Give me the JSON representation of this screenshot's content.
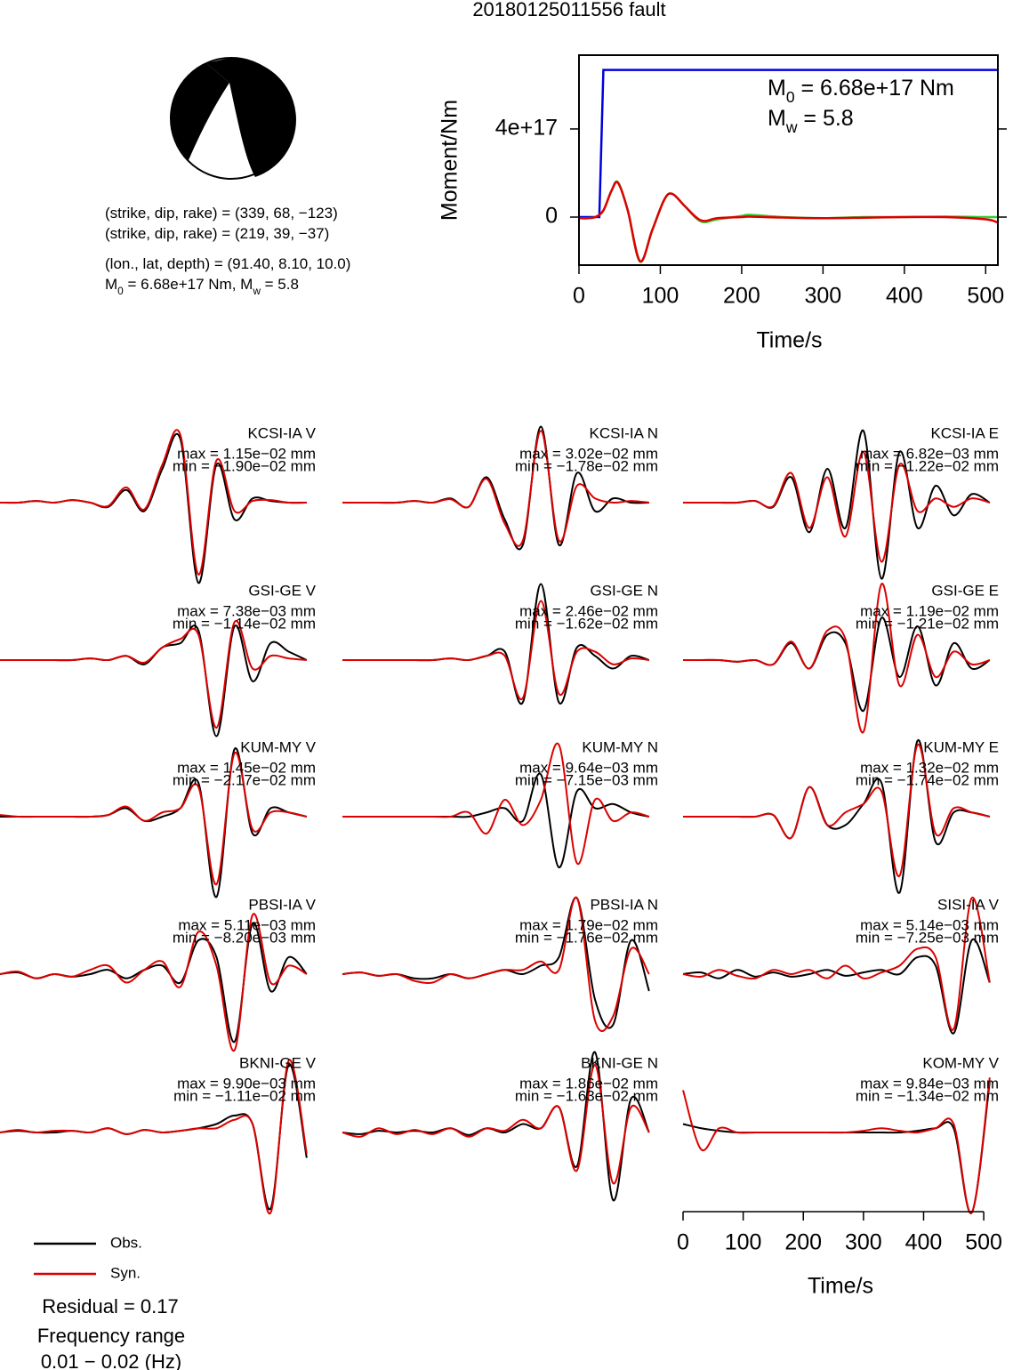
{
  "title": "20180125011556 fault",
  "mechanism": [
    [
      {
        "text": "(strike, dip, rake) = (339, 68, −123)"
      }
    ],
    [
      {
        "text": "(strike, dip, rake) = (219, 39, −37)"
      }
    ],
    [
      {
        "text": "(lon., lat, depth) = (91.40, 8.10, 10.0)"
      }
    ],
    [
      {
        "text": "M"
      },
      {
        "text": "0",
        "subscript": true
      },
      {
        "text": " = 6.68e+17 Nm, M"
      },
      {
        "text": "w",
        "subscript": true
      },
      {
        "text": " = 5.8"
      }
    ]
  ],
  "chart_data": [
    {
      "type": "line",
      "xlabel": "Time/s",
      "ylabel": "Moment/Nm",
      "xlim": [
        0,
        515
      ],
      "ylim": [
        -2.18e+17,
        7.35e+17
      ],
      "xticks": [
        0,
        100,
        200,
        300,
        400,
        500
      ],
      "yticks": [
        0,
        {
          "value": 4e+17,
          "label": "4e+17"
        }
      ],
      "annotations": [
        [
          {
            "text": "M"
          },
          {
            "text": "0",
            "subscript": true
          },
          {
            "text": " = 6.68e+17 Nm"
          }
        ],
        [
          {
            "text": "M"
          },
          {
            "text": "w",
            "subscript": true
          },
          {
            "text": " = 5.8"
          }
        ]
      ],
      "series": [
        {
          "color": "#0000dd",
          "x": [
            0,
            25,
            30,
            515
          ],
          "values": [
            0,
            0,
            6.68e+17,
            6.68e+17
          ]
        },
        {
          "color": "#33cc33",
          "x": [
            0,
            10,
            20,
            30,
            40,
            48,
            60,
            75,
            90,
            105,
            115,
            130,
            150,
            170,
            200,
            210,
            250,
            300,
            350,
            400,
            450,
            500,
            515
          ],
          "values": [
            -5000000000000000.0,
            -5000000000000000.0,
            0,
            3e+16,
            1.2e+17,
            1.58e+17,
            3e+16,
            -2.02e+17,
            -6e+16,
            8e+16,
            1.05e+17,
            5e+16,
            -2e+16,
            -1e+16,
            5000000000000000.0,
            1e+16,
            0,
            -5000000000000000.0,
            0,
            0,
            2000000000000000.0,
            0,
            0
          ]
        },
        {
          "color": "#dd0000",
          "x": [
            0,
            10,
            20,
            30,
            40,
            48,
            60,
            75,
            90,
            105,
            115,
            130,
            150,
            170,
            200,
            210,
            250,
            300,
            350,
            400,
            450,
            500,
            515
          ],
          "values": [
            -5000000000000000.0,
            -5000000000000000.0,
            0,
            3e+16,
            1.2e+17,
            1.55e+17,
            3e+16,
            -2e+17,
            -6e+16,
            8e+16,
            1.05e+17,
            5e+16,
            -1.5e+16,
            -5000000000000000.0,
            0,
            2000000000000000.0,
            -2000000000000000.0,
            -5000000000000000.0,
            -3000000000000000.0,
            0,
            0,
            -1e+16,
            -2.5e+16
          ]
        }
      ]
    },
    {
      "type": "waveform",
      "xlabel": "Time/s",
      "xlim": [
        0,
        525
      ],
      "xticks": [
        0,
        100,
        200,
        300,
        400,
        500
      ],
      "x": [
        0,
        30,
        60,
        90,
        120,
        150,
        180,
        210,
        240,
        270,
        300,
        330,
        360,
        390,
        420,
        450,
        480,
        510
      ],
      "legend": [
        {
          "name": "Obs.",
          "color": "#000000"
        },
        {
          "name": "Syn.",
          "color": "#dd0000"
        }
      ],
      "panels": [
        {
          "station": "KCSI-IA V",
          "max": "max = 1.15e−02 mm",
          "min": "min = −1.90e−02 mm",
          "obs": [
            0,
            0,
            0.02,
            0,
            0.03,
            0,
            -0.05,
            0.15,
            -0.1,
            0.4,
            0.75,
            -0.95,
            0.45,
            -0.2,
            0.05,
            0.02,
            0,
            0
          ],
          "syn": [
            0,
            0,
            0.02,
            0,
            0.03,
            0,
            -0.04,
            0.18,
            -0.08,
            0.45,
            0.8,
            -0.85,
            0.5,
            -0.1,
            0.02,
            0.03,
            0,
            0
          ]
        },
        {
          "station": "KCSI-IA N",
          "max": "max = 3.02e−02 mm",
          "min": "min = −1.78e−02 mm",
          "obs": [
            0,
            0,
            0,
            0,
            0.02,
            0,
            0.05,
            -0.05,
            0.3,
            -0.2,
            -0.5,
            0.9,
            -0.5,
            0.35,
            -0.1,
            0.05,
            0,
            0
          ],
          "syn": [
            0,
            0,
            0,
            0,
            0.02,
            0,
            0.04,
            -0.05,
            0.28,
            -0.25,
            -0.45,
            0.85,
            -0.45,
            0.2,
            0.05,
            0,
            0.02,
            0
          ]
        },
        {
          "station": "KCSI-IA E",
          "max": "max = 6.82e−03 mm",
          "min": "min = −1.22e−02 mm",
          "obs": [
            0,
            0,
            0,
            0,
            0.02,
            -0.05,
            0.3,
            -0.35,
            0.4,
            -0.3,
            0.85,
            -0.9,
            0.6,
            -0.3,
            0.2,
            -0.15,
            0.1,
            0
          ],
          "syn": [
            0,
            0,
            0,
            0,
            0.02,
            -0.04,
            0.35,
            -0.3,
            0.3,
            -0.4,
            0.6,
            -0.7,
            0.45,
            -0.1,
            0.05,
            -0.05,
            0.05,
            0
          ]
        },
        {
          "station": "GSI-GE V",
          "max": "max = 7.38e−03 mm",
          "min": "min = −1.14e−02 mm",
          "obs": [
            0,
            0,
            0,
            0,
            0,
            0.02,
            0,
            0.05,
            -0.05,
            0.15,
            0.2,
            0.35,
            -0.9,
            0.4,
            -0.25,
            0.2,
            0.1,
            0
          ],
          "syn": [
            0,
            0,
            0,
            0,
            0,
            0.02,
            0,
            0.05,
            -0.03,
            0.15,
            0.25,
            0.3,
            -0.8,
            0.45,
            -0.1,
            0.05,
            0.02,
            0
          ]
        },
        {
          "station": "GSI-GE N",
          "max": "max = 2.46e−02 mm",
          "min": "min = −1.62e−02 mm",
          "obs": [
            0,
            0,
            0,
            0,
            0,
            0,
            0.02,
            0,
            0.05,
            0.1,
            -0.5,
            0.9,
            -0.5,
            0.15,
            0.05,
            -0.1,
            0.05,
            0
          ],
          "syn": [
            0,
            0,
            0,
            0,
            0,
            0,
            0.02,
            0,
            0.05,
            0.05,
            -0.45,
            0.7,
            -0.4,
            0.1,
            0.1,
            -0.05,
            0.02,
            0
          ]
        },
        {
          "station": "GSI-GE E",
          "max": "max = 1.19e−02 mm",
          "min": "min = −1.21e−02 mm",
          "obs": [
            0,
            0,
            0,
            -0.02,
            0,
            -0.05,
            0.2,
            -0.1,
            0.3,
            0.2,
            -0.6,
            0.5,
            -0.2,
            0.4,
            -0.3,
            0.2,
            -0.1,
            0
          ],
          "syn": [
            0,
            0,
            0,
            -0.02,
            0,
            -0.05,
            0.22,
            -0.1,
            0.35,
            0.25,
            -0.85,
            0.9,
            -0.3,
            0.3,
            -0.2,
            0.1,
            -0.05,
            0
          ]
        },
        {
          "station": "KUM-MY V",
          "max": "max = 1.45e−02 mm",
          "min": "min = −2.17e−02 mm",
          "obs": [
            0,
            0,
            0,
            0,
            0,
            0,
            0.02,
            0.1,
            -0.05,
            0,
            0.1,
            0.4,
            -0.95,
            0.8,
            -0.2,
            0.1,
            0.05,
            0
          ],
          "syn": [
            0.02,
            0,
            0,
            0,
            0,
            0,
            0.02,
            0.12,
            -0.05,
            0.05,
            0.1,
            0.35,
            -0.8,
            0.75,
            -0.15,
            0.05,
            0.05,
            0
          ]
        },
        {
          "station": "KUM-MY N",
          "max": "max = 9.64e−03 mm",
          "min": "min = −7.15e−03 mm",
          "obs": [
            0,
            0,
            0,
            0,
            0,
            0,
            0,
            0,
            0.05,
            0.1,
            -0.05,
            0.5,
            -0.6,
            0.3,
            0.1,
            0.15,
            0.05,
            0
          ],
          "syn": [
            0,
            0,
            0,
            0,
            0,
            0,
            0,
            0.05,
            -0.2,
            0.2,
            -0.1,
            0.2,
            0.85,
            -0.55,
            0.2,
            -0.05,
            0.05,
            0
          ]
        },
        {
          "station": "KUM-MY E",
          "max": "max = 1.32e−02 mm",
          "min": "min = −1.74e−02 mm",
          "obs": [
            0,
            0,
            0,
            0,
            0,
            0.02,
            -0.25,
            0.35,
            -0.1,
            -0.1,
            0.15,
            0.4,
            -0.9,
            0.9,
            -0.3,
            0.05,
            0.05,
            0
          ],
          "syn": [
            0,
            0,
            0,
            0,
            0,
            0.02,
            -0.25,
            0.35,
            -0.1,
            0.05,
            0.15,
            0.3,
            -0.7,
            0.85,
            -0.2,
            0.1,
            0.05,
            0
          ]
        },
        {
          "station": "PBSI-IA V",
          "max": "max = 5.11e−03 mm",
          "min": "min = −8.20e−03 mm",
          "obs": [
            0,
            0.02,
            -0.05,
            0,
            -0.03,
            0,
            0.05,
            -0.05,
            0.05,
            0.1,
            -0.1,
            0.4,
            0.2,
            -0.8,
            0.6,
            -0.2,
            0.2,
            0
          ],
          "syn": [
            0,
            0.03,
            -0.05,
            0,
            -0.03,
            0.05,
            0.1,
            -0.1,
            0.05,
            0.15,
            -0.15,
            0.5,
            0.1,
            -0.9,
            0.7,
            -0.1,
            0.1,
            0
          ]
        },
        {
          "station": "PBSI-IA N",
          "max": "max = 1.79e−02 mm",
          "min": "min = −1.76e−02 mm",
          "obs": [
            0,
            0.02,
            -0.02,
            0,
            -0.05,
            -0.05,
            0,
            -0.05,
            0,
            0.05,
            0,
            0.1,
            0.2,
            0.9,
            -0.3,
            -0.6,
            0.4,
            -0.2
          ],
          "syn": [
            0,
            0.02,
            -0.02,
            0,
            -0.08,
            -0.1,
            0,
            -0.05,
            0,
            0.05,
            0.05,
            0.15,
            0.05,
            0.9,
            -0.55,
            -0.5,
            0.3,
            0
          ]
        },
        {
          "station": "SISI-IA V",
          "max": "max = 5.14e−03 mm",
          "min": "min = −7.25e−03 mm",
          "obs": [
            0,
            0.02,
            -0.05,
            0.05,
            -0.03,
            0.02,
            -0.03,
            0,
            0.05,
            -0.02,
            0.02,
            0.05,
            0,
            0.2,
            0.1,
            -0.7,
            0.4,
            -0.1
          ],
          "syn": [
            0,
            -0.03,
            0.05,
            -0.02,
            -0.05,
            0.05,
            0,
            0.05,
            -0.05,
            0.1,
            -0.05,
            0.02,
            0.1,
            0.3,
            0.2,
            -0.65,
            0.9,
            -0.1
          ]
        },
        {
          "station": "BKNI-GE V",
          "max": "max = 9.90e−03 mm",
          "min": "min = −1.11e−02 mm",
          "obs": [
            0,
            0.02,
            0,
            0,
            0.02,
            0,
            0.05,
            -0.02,
            0.03,
            0,
            0.02,
            0.05,
            0.1,
            0.2,
            0.1,
            -0.9,
            0.8,
            -0.3
          ],
          "syn": [
            0,
            0.03,
            0,
            0.02,
            0.02,
            0,
            0.05,
            -0.02,
            0.03,
            0,
            0.02,
            0.05,
            0.05,
            0.15,
            0.1,
            -0.95,
            0.85,
            -0.25
          ]
        },
        {
          "station": "BKNI-GE N",
          "max": "max = 1.86e−02 mm",
          "min": "min = −1.63e−02 mm",
          "obs": [
            0,
            -0.02,
            0.02,
            0,
            0.02,
            0,
            0.05,
            -0.03,
            0.05,
            0,
            0.1,
            0.05,
            0.3,
            -0.4,
            0.95,
            -0.8,
            0.4,
            0
          ],
          "syn": [
            0,
            -0.05,
            0.05,
            -0.02,
            0.03,
            -0.02,
            0.05,
            -0.05,
            0.05,
            0.02,
            0.15,
            0.05,
            0.3,
            -0.45,
            0.8,
            -0.6,
            0.3,
            0
          ]
        },
        {
          "station": "KOM-MY V",
          "max": "max = 9.84e−03 mm",
          "min": "min = −1.34e−02 mm",
          "obs": [
            0.1,
            0.05,
            0.02,
            0,
            0,
            0,
            0,
            0,
            0,
            0,
            0,
            0,
            0,
            0.02,
            0.05,
            0.05,
            -0.95,
            0.6
          ],
          "syn": [
            0.5,
            -0.2,
            0.05,
            0,
            0,
            0,
            0,
            0,
            0,
            0,
            0.02,
            0.05,
            0.02,
            0,
            0.05,
            0.1,
            -0.95,
            0.65
          ]
        }
      ]
    }
  ],
  "residual": "Residual = 0.17",
  "frequency": [
    "Frequency range",
    "0.01 − 0.02 (Hz)"
  ]
}
